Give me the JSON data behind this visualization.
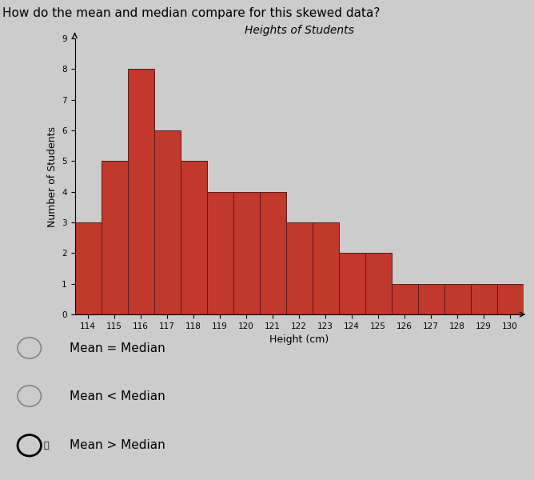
{
  "title": "Heights of Students",
  "question": "How do the mean and median compare for this skewed data?",
  "xlabel": "Height (cm)",
  "ylabel": "Number of Students",
  "categories": [
    114,
    115,
    116,
    117,
    118,
    119,
    120,
    121,
    122,
    123,
    124,
    125,
    126,
    127,
    128,
    129,
    130
  ],
  "values": [
    3,
    5,
    8,
    6,
    5,
    4,
    4,
    4,
    3,
    3,
    2,
    2,
    1,
    1,
    1,
    1,
    1
  ],
  "bar_color": "#c0392b",
  "bar_edge_color": "#5a1a1a",
  "background_color": "#cccccc",
  "ylim": [
    0,
    9
  ],
  "yticks": [
    0,
    1,
    2,
    3,
    4,
    5,
    6,
    7,
    8,
    9
  ],
  "options": [
    "Mean = Median",
    "Mean < Median",
    "Mean > Median"
  ],
  "selected_option": 2,
  "title_fontsize": 10,
  "question_fontsize": 11,
  "axis_label_fontsize": 9,
  "tick_fontsize": 7.5
}
